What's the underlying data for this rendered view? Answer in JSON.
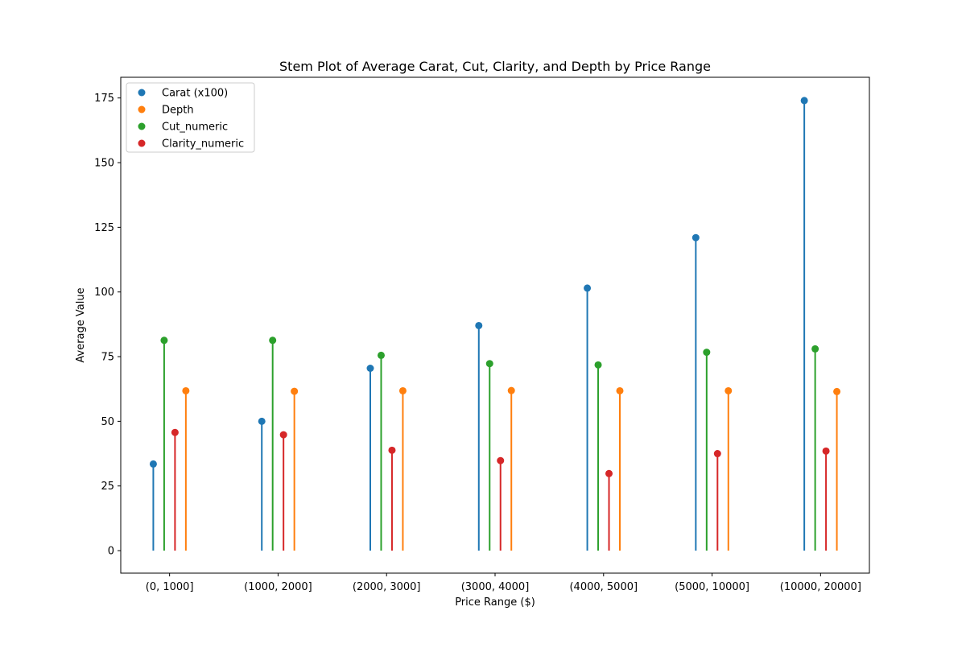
{
  "chart_data": {
    "type": "stem",
    "title": "Stem Plot of Average Carat, Cut, Clarity, and Depth by Price Range",
    "xlabel": "Price Range ($)",
    "ylabel": "Average Value",
    "categories": [
      "(0, 1000]",
      "(1000, 2000]",
      "(2000, 3000]",
      "(3000, 4000]",
      "(4000, 5000]",
      "(5000, 10000]",
      "(10000, 20000]"
    ],
    "ylim": [
      -8.7,
      183
    ],
    "yticks": [
      0,
      25,
      50,
      75,
      100,
      125,
      150,
      175
    ],
    "grid": false,
    "legend_position": "upper-left",
    "series": [
      {
        "name": "Carat (x100)",
        "color": "#1f77b4",
        "values": [
          33.5,
          50.0,
          70.5,
          87.0,
          101.5,
          121.0,
          174.0
        ]
      },
      {
        "name": "Depth",
        "color": "#ff7f0e",
        "values": [
          61.8,
          61.6,
          61.8,
          61.9,
          61.8,
          61.8,
          61.5
        ]
      },
      {
        "name": "Cut_numeric",
        "color": "#2ca02c",
        "values": [
          81.3,
          81.3,
          75.5,
          72.3,
          71.8,
          76.7,
          78.0
        ]
      },
      {
        "name": "Clarity_numeric",
        "color": "#d62728",
        "values": [
          45.7,
          44.8,
          38.8,
          34.8,
          29.8,
          37.5,
          38.5
        ]
      }
    ],
    "draw_order": [
      "Carat (x100)",
      "Cut_numeric",
      "Clarity_numeric",
      "Depth"
    ]
  }
}
